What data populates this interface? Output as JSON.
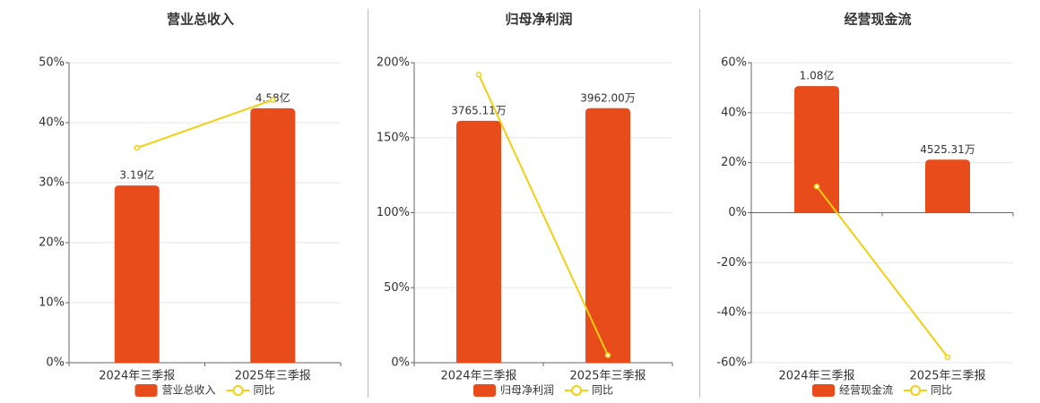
{
  "chart_data": [
    {
      "type": "bar",
      "title": "营业总收入",
      "categories": [
        "2024年三季报",
        "2025年三季报"
      ],
      "series": [
        {
          "name": "营业总收入",
          "color": "#e84c1b",
          "values": [
            319000000,
            458000000
          ],
          "value_labels": [
            "3.19亿",
            "4.58亿"
          ],
          "axis": "y2"
        },
        {
          "name": "同比",
          "type": "line",
          "color": "#f2cf10",
          "values": [
            35.8,
            43.8
          ]
        }
      ],
      "ylim": [
        0,
        50
      ],
      "yticks": [
        {
          "value": 0,
          "label": "0%"
        },
        {
          "value": 10,
          "label": "10%"
        },
        {
          "value": 20,
          "label": "20%"
        },
        {
          "value": 30,
          "label": "30%"
        },
        {
          "value": 40,
          "label": "40%"
        },
        {
          "value": 50,
          "label": "50%"
        }
      ],
      "y2lim": [
        0,
        540000000
      ],
      "grid": true
    },
    {
      "type": "bar",
      "title": "归母净利润",
      "categories": [
        "2024年三季报",
        "2025年三季报"
      ],
      "series": [
        {
          "name": "归母净利润",
          "color": "#e84c1b",
          "values": [
            37651100,
            39620000
          ],
          "value_labels": [
            "3765.11万",
            "3962.00万"
          ],
          "axis": "y2"
        },
        {
          "name": "同比",
          "type": "line",
          "color": "#f2cf10",
          "values": [
            192,
            5
          ]
        }
      ],
      "ylim": [
        0,
        200
      ],
      "yticks": [
        {
          "value": 0,
          "label": "0%"
        },
        {
          "value": 50,
          "label": "50%"
        },
        {
          "value": 100,
          "label": "100%"
        },
        {
          "value": 150,
          "label": "150%"
        },
        {
          "value": 200,
          "label": "200%"
        }
      ],
      "y2lim": [
        0,
        46700000
      ],
      "grid": true
    },
    {
      "type": "bar",
      "title": "经营现金流",
      "categories": [
        "2024年三季报",
        "2025年三季报"
      ],
      "series": [
        {
          "name": "经营现金流",
          "color": "#e84c1b",
          "values": [
            108000000,
            45253100
          ],
          "value_labels": [
            "1.08亿",
            "4525.31万"
          ],
          "axis": "y2"
        },
        {
          "name": "同比",
          "type": "line",
          "color": "#f2cf10",
          "values": [
            10.5,
            -57.8
          ]
        }
      ],
      "ylim": [
        -60,
        60
      ],
      "yticks": [
        {
          "value": -60,
          "label": "-60%"
        },
        {
          "value": -40,
          "label": "-40%"
        },
        {
          "value": -20,
          "label": "-20%"
        },
        {
          "value": 0,
          "label": "0%"
        },
        {
          "value": 20,
          "label": "20%"
        },
        {
          "value": 40,
          "label": "40%"
        },
        {
          "value": 60,
          "label": "60%"
        }
      ],
      "y2lim": [
        -128000000,
        128000000
      ],
      "grid": true
    }
  ]
}
